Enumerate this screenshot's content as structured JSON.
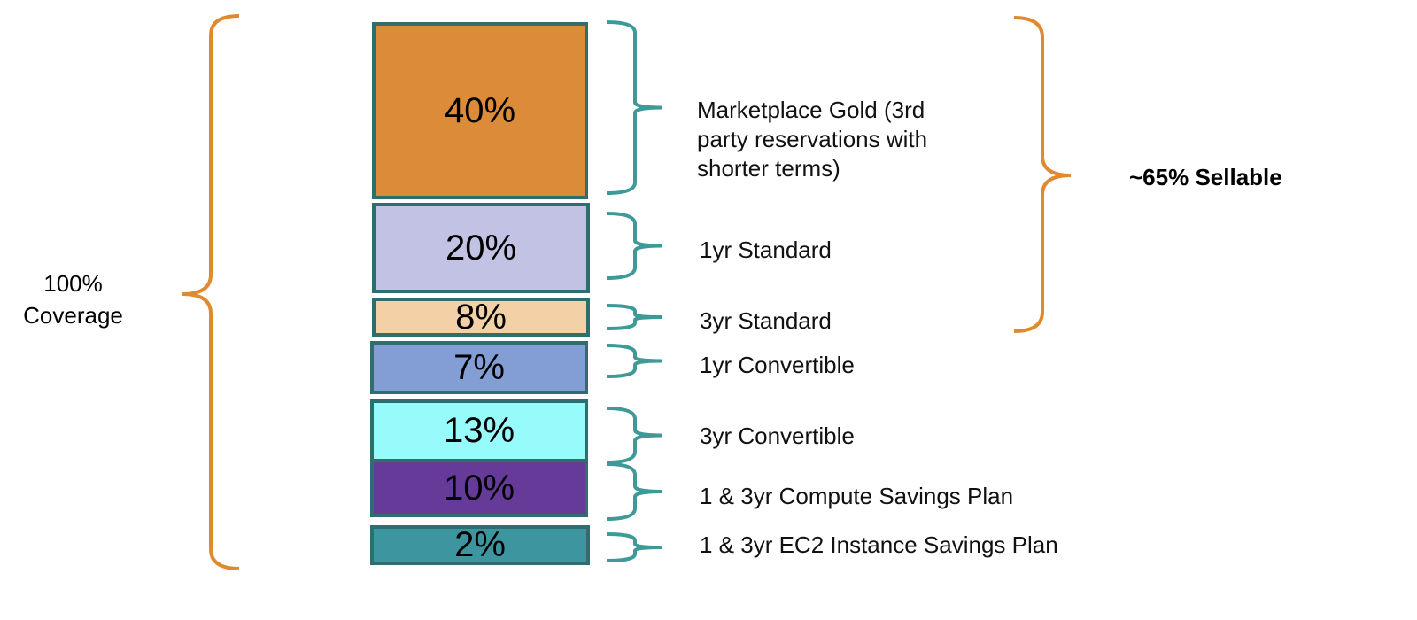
{
  "total": {
    "line1": "100%",
    "line2": "Coverage"
  },
  "sellable": "~65% Sellable",
  "segments": [
    {
      "value": "40%",
      "label": [
        "Marketplace Gold (3rd",
        "party reservations with",
        "shorter terms)"
      ],
      "color": "#dc8c38"
    },
    {
      "value": "20%",
      "label": [
        "1yr  Standard"
      ],
      "color": "#c1c2e4"
    },
    {
      "value": "8%",
      "label": [
        "3yr  Standard"
      ],
      "color": "#f3d0a6"
    },
    {
      "value": "7%",
      "label": [
        "1yr  Convertible"
      ],
      "color": "#839dd5"
    },
    {
      "value": "13%",
      "label": [
        "3yr  Convertible"
      ],
      "color": "#98fbfb"
    },
    {
      "value": "10%",
      "label": [
        "1 & 3yr Compute Savings Plan"
      ],
      "color": "#663a98"
    },
    {
      "value": "2%",
      "label": [
        "1 & 3yr EC2 Instance Savings Plan"
      ],
      "color": "#3d95a0"
    }
  ],
  "colors": {
    "bracket_orange": "#e08a30",
    "bracket_teal": "#3d9a98",
    "border": "#2e6e6e"
  }
}
